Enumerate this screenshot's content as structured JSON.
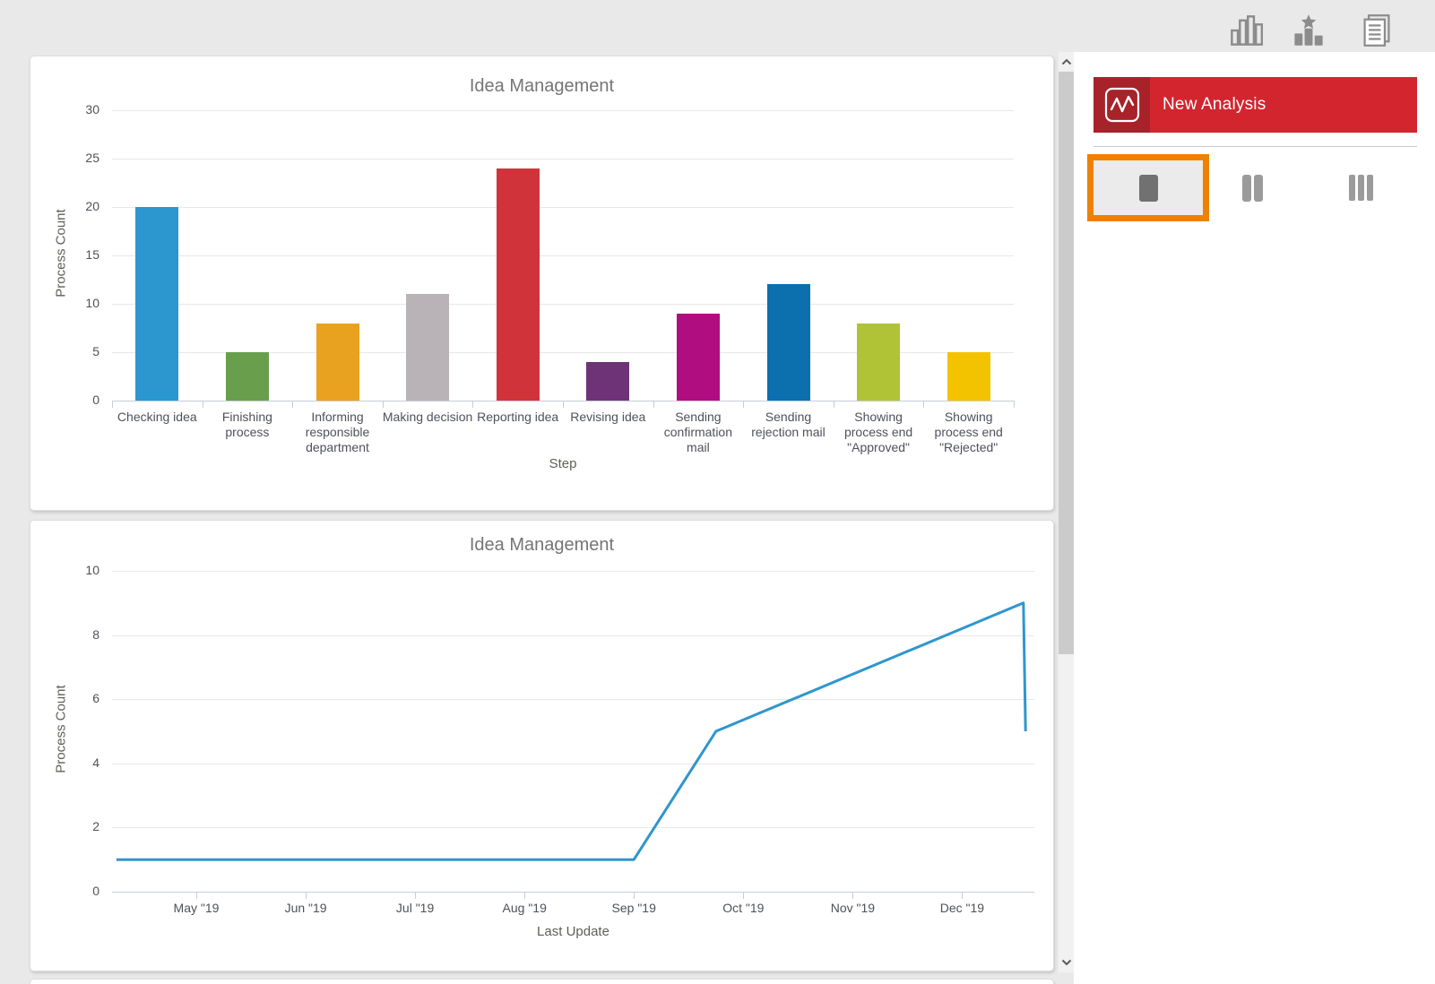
{
  "topbar": {
    "icons": [
      {
        "name": "column-chart-icon"
      },
      {
        "name": "star-ranking-chart-icon"
      },
      {
        "name": "report-icon"
      }
    ]
  },
  "sidebar": {
    "new_analysis_label": "New Analysis",
    "colors": {
      "button_red": "#d2252e",
      "button_red_dark": "#a72229",
      "selection_orange": "#ee8100"
    },
    "layout_options": [
      {
        "name": "one-column",
        "selected": true
      },
      {
        "name": "two-columns",
        "selected": false
      },
      {
        "name": "three-columns",
        "selected": false
      }
    ]
  },
  "chart_data": [
    {
      "type": "bar",
      "title": "Idea Management",
      "xlabel": "Step",
      "ylabel": "Process Count",
      "ylim": [
        0,
        30
      ],
      "yticks": [
        0,
        5,
        10,
        15,
        20,
        25,
        30
      ],
      "grid": true,
      "legend": "none",
      "categories": [
        "Checking idea",
        "Finishing process",
        "Informing responsible department",
        "Making decision",
        "Reporting idea",
        "Revising idea",
        "Sending confirmation mail",
        "Sending rejection mail",
        "Showing process end \"Approved\"",
        "Showing process end \"Rejected\""
      ],
      "values": [
        20,
        5,
        8,
        11,
        24,
        4,
        9,
        12,
        8,
        5
      ],
      "bar_colors": [
        "#2c96cf",
        "#699f4c",
        "#e9a21f",
        "#b9b3b7",
        "#d0343a",
        "#6e3377",
        "#b00d80",
        "#0c6fae",
        "#b0c337",
        "#f4c300"
      ]
    },
    {
      "type": "line",
      "title": "Idea Management",
      "xlabel": "Last Update",
      "ylabel": "Process Count",
      "ylim": [
        0,
        10
      ],
      "yticks": [
        0,
        2,
        4,
        6,
        8,
        10
      ],
      "grid": true,
      "legend": "none",
      "line_color": "#2e96ce",
      "xtick_labels": [
        "May \"19",
        "Jun \"19",
        "Jul \"19",
        "Aug \"19",
        "Sep \"19",
        "Oct \"19",
        "Nov \"19",
        "Dec \"19"
      ],
      "xtick_positions_months": [
        0,
        1,
        2,
        3,
        4,
        5,
        6,
        7
      ],
      "xlim_months": [
        -0.77,
        7.66
      ],
      "points_month_value": [
        [
          -0.73,
          1
        ],
        [
          4.0,
          1
        ],
        [
          4.75,
          5
        ],
        [
          7.56,
          9
        ],
        [
          7.58,
          5
        ]
      ]
    }
  ]
}
